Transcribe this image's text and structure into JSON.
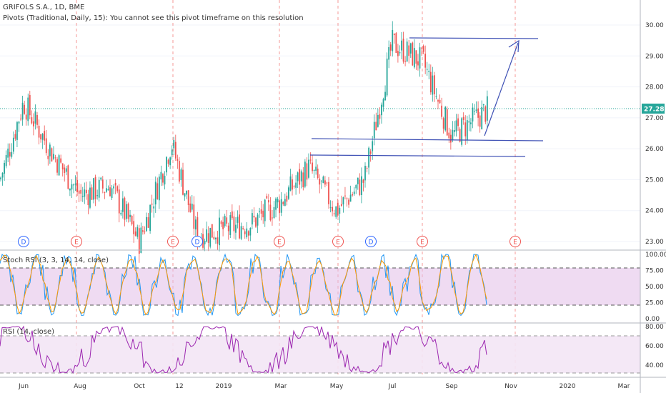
{
  "header": {
    "title": "GRIFOLS S.A., 1D, BME",
    "subtitle": "Pivots (Traditional, Daily, 15): You cannot see this pivot timeframe on this resolution"
  },
  "colors": {
    "up": "#26a69a",
    "down": "#ef5350",
    "annotation": "#3f51b5",
    "event_line": "#ef5350",
    "price_line": "#26a69a",
    "price_badge": "#26a69a",
    "stoch_k": "#2196f3",
    "stoch_d": "#ff9800",
    "stoch_band": "#e1bee7",
    "rsi_line": "#9c27b0",
    "rsi_band": "#f3e5f5",
    "grid": "#f0f3fa",
    "axis_text": "#333333"
  },
  "price_pane": {
    "ylim": [
      22.7,
      30.3
    ],
    "ticks": [
      "30.00",
      "29.00",
      "28.00",
      "27.00",
      "26.00",
      "25.00",
      "24.00",
      "23.00"
    ],
    "current_price": "27.28",
    "current_price_value": 27.28
  },
  "stoch_pane": {
    "title": "Stoch RSI (3, 3, 14, 14, close)",
    "ticks": [
      "100.00",
      "75.00",
      "50.00",
      "25.00",
      "0.00"
    ],
    "band": [
      20,
      80
    ]
  },
  "rsi_pane": {
    "title": "RSI (14, close)",
    "ticks": [
      "80.00",
      "60.00",
      "40.00"
    ],
    "band": [
      30,
      70
    ]
  },
  "time_axis": {
    "labels": [
      "Jun",
      "Aug",
      "Oct",
      "12",
      "2019",
      "Mar",
      "May",
      "Jul",
      "Sep",
      "Nov",
      "2020",
      "Mar"
    ]
  },
  "event_markers": [
    "D",
    "E",
    "E",
    "D",
    "E",
    "E",
    "D",
    "E",
    "E"
  ],
  "chart_data": {
    "type": "candlestick",
    "series": [
      {
        "name": "GRIFOLS S.A.",
        "points": [
          {
            "date": "2018-05",
            "close": 25.0
          },
          {
            "date": "2018-06",
            "close": 27.5
          },
          {
            "date": "2018-07",
            "close": 25.9
          },
          {
            "date": "2018-08",
            "close": 24.5
          },
          {
            "date": "2018-09",
            "close": 24.8
          },
          {
            "date": "2018-10",
            "close": 23.0
          },
          {
            "date": "2018-11",
            "close": 26.2
          },
          {
            "date": "2018-12",
            "close": 23.2
          },
          {
            "date": "2019-01",
            "close": 23.4
          },
          {
            "date": "2019-02",
            "close": 23.6
          },
          {
            "date": "2019-03",
            "close": 24.3
          },
          {
            "date": "2019-04",
            "close": 25.4
          },
          {
            "date": "2019-05",
            "close": 24.0
          },
          {
            "date": "2019-06",
            "close": 25.0
          },
          {
            "date": "2019-07",
            "close": 29.4
          },
          {
            "date": "2019-08",
            "close": 28.8
          },
          {
            "date": "2019-09",
            "close": 26.4
          },
          {
            "date": "2019-09-30",
            "close": 27.28
          }
        ]
      }
    ],
    "annotations": {
      "top_line": 29.55,
      "support_line": 26.25,
      "lower_line": 25.75,
      "arrow_from": 26.35,
      "arrow_to": 29.55
    }
  }
}
